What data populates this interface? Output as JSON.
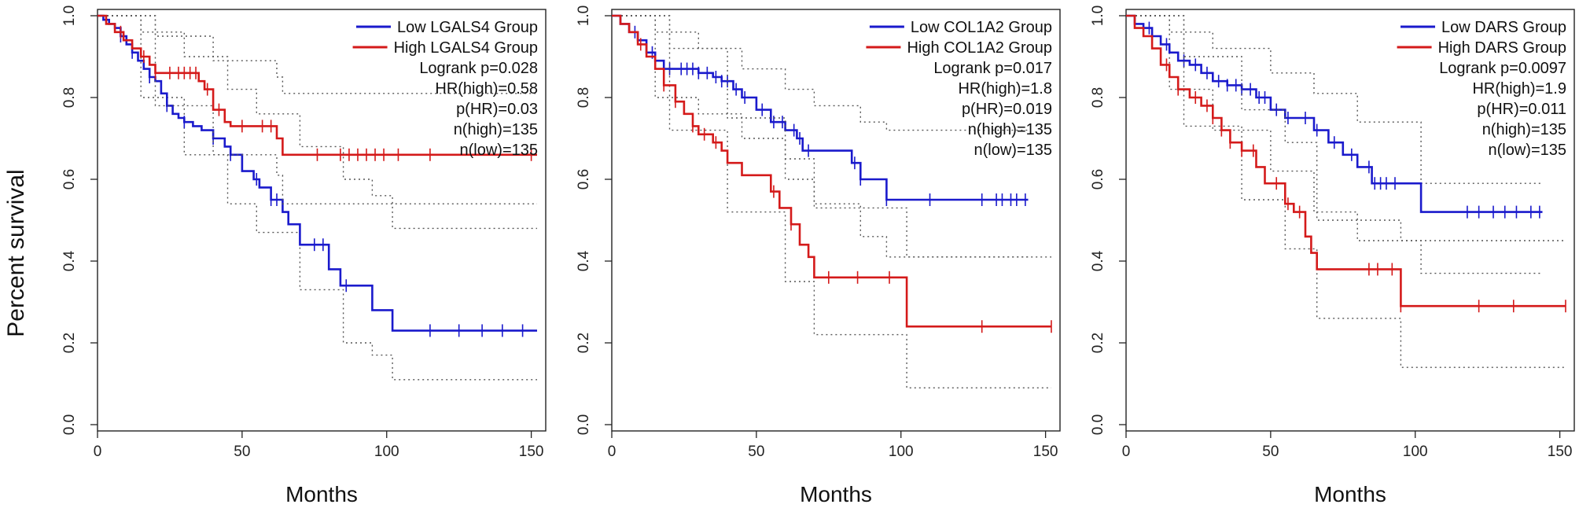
{
  "figure": {
    "ylabel": "Percent survival"
  },
  "chart_data": [
    {
      "type": "line",
      "title": "",
      "xlabel": "Months",
      "ylabel": "Percent survival",
      "xlim": [
        0,
        155
      ],
      "ylim": [
        0,
        1.0
      ],
      "xticks": [
        0,
        50,
        100,
        150
      ],
      "yticks": [
        0.0,
        0.2,
        0.4,
        0.6,
        0.8,
        1.0
      ],
      "legend": [
        "Low LGALS4 Group",
        "High LGALS4 Group"
      ],
      "stats": [
        "Logrank p=0.028",
        "HR(high)=0.58",
        "p(HR)=0.03",
        "n(high)=135",
        "n(low)=135"
      ],
      "colors": {
        "low": "#1a1acc",
        "high": "#d41a1a",
        "ci": "#555555"
      },
      "series": [
        {
          "name": "Low LGALS4 Group",
          "x": [
            0,
            2,
            4,
            6,
            8,
            10,
            12,
            14,
            16,
            18,
            20,
            22,
            24,
            26,
            28,
            30,
            33,
            36,
            40,
            44,
            46,
            50,
            54,
            56,
            60,
            64,
            66,
            70,
            75,
            80,
            84,
            95,
            102,
            152
          ],
          "y": [
            1.0,
            0.99,
            0.98,
            0.97,
            0.95,
            0.93,
            0.91,
            0.89,
            0.87,
            0.85,
            0.84,
            0.81,
            0.78,
            0.76,
            0.75,
            0.74,
            0.73,
            0.72,
            0.7,
            0.68,
            0.66,
            0.62,
            0.6,
            0.58,
            0.55,
            0.52,
            0.49,
            0.44,
            0.44,
            0.38,
            0.34,
            0.28,
            0.23,
            0.23
          ],
          "censor": [
            8,
            12,
            18,
            24,
            30,
            40,
            46,
            55,
            60,
            62,
            75,
            78,
            86,
            115,
            125,
            133,
            140,
            147
          ],
          "ci_upper": [
            [
              0,
              1.0
            ],
            [
              15,
              0.96
            ],
            [
              30,
              0.9
            ],
            [
              45,
              0.82
            ],
            [
              55,
              0.76
            ],
            [
              70,
              0.68
            ],
            [
              85,
              0.6
            ],
            [
              95,
              0.56
            ],
            [
              102,
              0.48
            ],
            [
              152,
              0.48
            ]
          ],
          "ci_lower": [
            [
              0,
              1.0
            ],
            [
              15,
              0.8
            ],
            [
              30,
              0.66
            ],
            [
              45,
              0.54
            ],
            [
              55,
              0.47
            ],
            [
              70,
              0.33
            ],
            [
              85,
              0.2
            ],
            [
              95,
              0.17
            ],
            [
              102,
              0.11
            ],
            [
              152,
              0.11
            ]
          ]
        },
        {
          "name": "High LGALS4 Group",
          "x": [
            0,
            3,
            6,
            9,
            12,
            15,
            18,
            20,
            24,
            30,
            35,
            37,
            40,
            44,
            46,
            55,
            60,
            62,
            64,
            152
          ],
          "y": [
            1.0,
            0.98,
            0.96,
            0.94,
            0.92,
            0.9,
            0.88,
            0.86,
            0.86,
            0.86,
            0.84,
            0.82,
            0.77,
            0.74,
            0.73,
            0.73,
            0.73,
            0.7,
            0.66,
            0.66
          ],
          "censor": [
            8,
            16,
            20,
            25,
            28,
            30,
            32,
            34,
            38,
            42,
            50,
            57,
            60,
            76,
            84,
            87,
            90,
            93,
            96,
            99,
            104,
            115,
            150
          ],
          "ci_upper": [
            [
              0,
              1.0
            ],
            [
              20,
              0.95
            ],
            [
              40,
              0.89
            ],
            [
              62,
              0.85
            ],
            [
              64,
              0.81
            ],
            [
              152,
              0.81
            ]
          ],
          "ci_lower": [
            [
              0,
              1.0
            ],
            [
              20,
              0.78
            ],
            [
              40,
              0.66
            ],
            [
              62,
              0.61
            ],
            [
              64,
              0.54
            ],
            [
              152,
              0.54
            ]
          ]
        }
      ]
    },
    {
      "type": "line",
      "title": "",
      "xlabel": "Months",
      "ylabel": "",
      "xlim": [
        0,
        155
      ],
      "ylim": [
        0,
        1.0
      ],
      "xticks": [
        0,
        50,
        100,
        150
      ],
      "yticks": [
        0.0,
        0.2,
        0.4,
        0.6,
        0.8,
        1.0
      ],
      "legend": [
        "Low COL1A2 Group",
        "High COL1A2 Group"
      ],
      "stats": [
        "Logrank p=0.017",
        "HR(high)=1.8",
        "p(HR)=0.019",
        "n(high)=135",
        "n(low)=135"
      ],
      "colors": {
        "low": "#1a1acc",
        "high": "#d41a1a",
        "ci": "#555555"
      },
      "series": [
        {
          "name": "Low COL1A2 Group",
          "x": [
            0,
            3,
            6,
            9,
            12,
            15,
            18,
            20,
            30,
            35,
            38,
            42,
            45,
            50,
            55,
            60,
            64,
            66,
            70,
            83,
            86,
            95,
            144
          ],
          "y": [
            1.0,
            0.98,
            0.96,
            0.94,
            0.91,
            0.89,
            0.87,
            0.87,
            0.86,
            0.85,
            0.84,
            0.82,
            0.8,
            0.77,
            0.74,
            0.72,
            0.7,
            0.67,
            0.67,
            0.64,
            0.6,
            0.55,
            0.55
          ],
          "censor": [
            8,
            14,
            20,
            24,
            26,
            28,
            30,
            33,
            36,
            38,
            40,
            43,
            46,
            52,
            56,
            59,
            63,
            65,
            68,
            84,
            86,
            95,
            110,
            128,
            133,
            135,
            138,
            140,
            143
          ],
          "ci_upper": [
            [
              0,
              1.0
            ],
            [
              15,
              0.96
            ],
            [
              30,
              0.92
            ],
            [
              45,
              0.87
            ],
            [
              60,
              0.82
            ],
            [
              70,
              0.78
            ],
            [
              86,
              0.74
            ],
            [
              95,
              0.72
            ],
            [
              144,
              0.72
            ]
          ],
          "ci_lower": [
            [
              0,
              1.0
            ],
            [
              15,
              0.8
            ],
            [
              30,
              0.76
            ],
            [
              45,
              0.7
            ],
            [
              60,
              0.6
            ],
            [
              70,
              0.54
            ],
            [
              86,
              0.46
            ],
            [
              95,
              0.41
            ],
            [
              144,
              0.41
            ]
          ]
        },
        {
          "name": "High COL1A2 Group",
          "x": [
            0,
            3,
            6,
            9,
            12,
            15,
            18,
            22,
            25,
            28,
            30,
            35,
            38,
            40,
            45,
            52,
            55,
            58,
            62,
            65,
            68,
            70,
            73,
            102,
            152
          ],
          "y": [
            1.0,
            0.98,
            0.96,
            0.93,
            0.9,
            0.87,
            0.83,
            0.79,
            0.76,
            0.73,
            0.71,
            0.69,
            0.67,
            0.64,
            0.61,
            0.61,
            0.57,
            0.53,
            0.49,
            0.44,
            0.41,
            0.36,
            0.36,
            0.24,
            0.24
          ],
          "censor": [
            10,
            18,
            22,
            28,
            32,
            36,
            56,
            62,
            75,
            85,
            96,
            128,
            152
          ],
          "ci_upper": [
            [
              0,
              1.0
            ],
            [
              20,
              0.92
            ],
            [
              40,
              0.75
            ],
            [
              60,
              0.65
            ],
            [
              70,
              0.53
            ],
            [
              102,
              0.41
            ],
            [
              152,
              0.41
            ]
          ],
          "ci_lower": [
            [
              0,
              1.0
            ],
            [
              20,
              0.72
            ],
            [
              40,
              0.52
            ],
            [
              60,
              0.35
            ],
            [
              70,
              0.22
            ],
            [
              102,
              0.09
            ],
            [
              152,
              0.09
            ]
          ]
        }
      ]
    },
    {
      "type": "line",
      "title": "",
      "xlabel": "Months",
      "ylabel": "",
      "xlim": [
        0,
        155
      ],
      "ylim": [
        0,
        1.0
      ],
      "xticks": [
        0,
        50,
        100,
        150
      ],
      "yticks": [
        0.0,
        0.2,
        0.4,
        0.6,
        0.8,
        1.0
      ],
      "legend": [
        "Low DARS Group",
        "High DARS Group"
      ],
      "stats": [
        "Logrank p=0.0097",
        "HR(high)=1.9",
        "p(HR)=0.011",
        "n(high)=135",
        "n(low)=135"
      ],
      "colors": {
        "low": "#1a1acc",
        "high": "#d41a1a",
        "ci": "#555555"
      },
      "series": [
        {
          "name": "Low DARS Group",
          "x": [
            0,
            3,
            6,
            9,
            12,
            15,
            18,
            22,
            26,
            30,
            35,
            40,
            45,
            50,
            55,
            60,
            65,
            70,
            75,
            80,
            85,
            90,
            102,
            144
          ],
          "y": [
            1.0,
            0.98,
            0.97,
            0.95,
            0.93,
            0.91,
            0.89,
            0.88,
            0.86,
            0.84,
            0.83,
            0.82,
            0.8,
            0.77,
            0.75,
            0.75,
            0.72,
            0.69,
            0.66,
            0.63,
            0.59,
            0.59,
            0.52,
            0.52
          ],
          "censor": [
            8,
            14,
            20,
            24,
            28,
            32,
            35,
            38,
            40,
            43,
            46,
            48,
            52,
            56,
            62,
            66,
            72,
            78,
            84,
            86,
            88,
            90,
            93,
            118,
            122,
            127,
            131,
            135,
            140,
            143
          ],
          "ci_upper": [
            [
              0,
              1.0
            ],
            [
              15,
              0.96
            ],
            [
              30,
              0.92
            ],
            [
              50,
              0.86
            ],
            [
              65,
              0.81
            ],
            [
              80,
              0.74
            ],
            [
              102,
              0.59
            ],
            [
              144,
              0.59
            ]
          ],
          "ci_lower": [
            [
              0,
              1.0
            ],
            [
              15,
              0.82
            ],
            [
              30,
              0.72
            ],
            [
              50,
              0.62
            ],
            [
              65,
              0.52
            ],
            [
              80,
              0.45
            ],
            [
              102,
              0.37
            ],
            [
              144,
              0.37
            ]
          ]
        },
        {
          "name": "High DARS Group",
          "x": [
            0,
            3,
            6,
            9,
            12,
            15,
            18,
            22,
            26,
            30,
            33,
            36,
            40,
            45,
            48,
            52,
            55,
            58,
            62,
            64,
            66,
            95,
            152
          ],
          "y": [
            1.0,
            0.97,
            0.95,
            0.92,
            0.88,
            0.85,
            0.82,
            0.8,
            0.78,
            0.75,
            0.72,
            0.69,
            0.67,
            0.63,
            0.59,
            0.59,
            0.54,
            0.52,
            0.46,
            0.42,
            0.38,
            0.29,
            0.29
          ],
          "censor": [
            14,
            18,
            24,
            28,
            30,
            33,
            36,
            40,
            44,
            52,
            56,
            60,
            84,
            87,
            92,
            95,
            122,
            134,
            152
          ],
          "ci_upper": [
            [
              0,
              1.0
            ],
            [
              20,
              0.9
            ],
            [
              40,
              0.77
            ],
            [
              55,
              0.69
            ],
            [
              66,
              0.5
            ],
            [
              95,
              0.45
            ],
            [
              152,
              0.45
            ]
          ],
          "ci_lower": [
            [
              0,
              1.0
            ],
            [
              20,
              0.73
            ],
            [
              40,
              0.55
            ],
            [
              55,
              0.43
            ],
            [
              66,
              0.26
            ],
            [
              95,
              0.14
            ],
            [
              152,
              0.14
            ]
          ]
        }
      ]
    }
  ]
}
